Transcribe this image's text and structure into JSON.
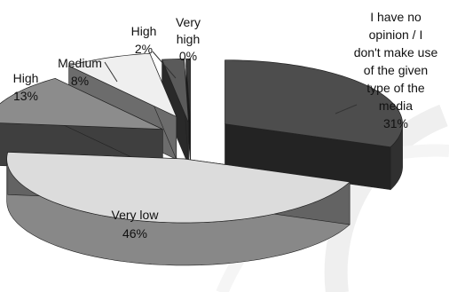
{
  "chart_data": {
    "type": "pie",
    "style": "3d-exploded",
    "title": "",
    "slices": [
      {
        "label_lines": [
          "I have no",
          "opinion / I",
          "don't make use",
          "of the given",
          "type of the",
          "media"
        ],
        "value": 31,
        "value_text": "31%",
        "color": "#4d4d4d"
      },
      {
        "label_lines": [
          "Very low"
        ],
        "value": 46,
        "value_text": "46%",
        "color": "#dcdcdc"
      },
      {
        "label_lines": [
          "High"
        ],
        "value": 13,
        "value_text": "13%",
        "color": "#8c8c8c"
      },
      {
        "label_lines": [
          "Medium"
        ],
        "value": 8,
        "value_text": "8%",
        "color": "#efefef"
      },
      {
        "label_lines": [
          "High"
        ],
        "value": 2,
        "value_text": "2%",
        "color": "#5a5a5a"
      },
      {
        "label_lines": [
          "Very",
          "high"
        ],
        "value": 0.4,
        "value_text": "0%",
        "color": "#3a3a3a"
      }
    ]
  }
}
